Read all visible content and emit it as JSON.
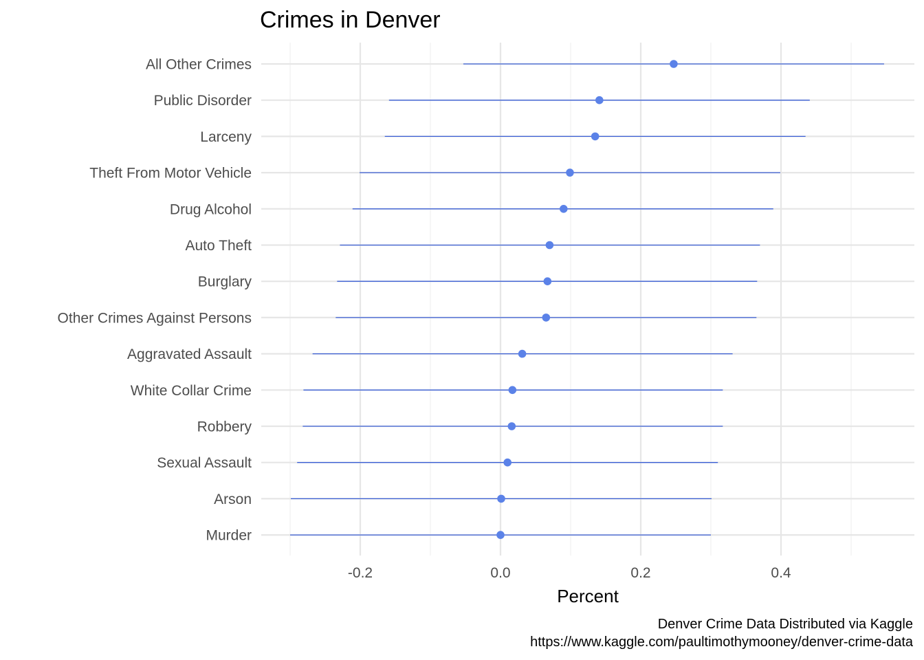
{
  "chart_data": {
    "type": "scatter",
    "title": "Crimes in Denver",
    "xlabel": "Percent",
    "ylabel": "",
    "caption": [
      "Denver Crime Data Distributed via Kaggle",
      "https://www.kaggle.com/paultimothymooney/denver-crime-data"
    ],
    "xlim": [
      -0.3,
      0.55
    ],
    "x_ticks": [
      -0.2,
      0.0,
      0.2,
      0.4
    ],
    "x_tick_labels": [
      "-0.2",
      "0.0",
      "0.2",
      "0.4"
    ],
    "grid": true,
    "point_color": "#5b82e8",
    "line_color": "#3a5fd6",
    "categories": [
      "All Other Crimes",
      "Public Disorder",
      "Larceny",
      "Theft From Motor Vehicle",
      "Drug Alcohol",
      "Auto Theft",
      "Burglary",
      "Other Crimes Against Persons",
      "Aggravated Assault",
      "White Collar Crime",
      "Robbery",
      "Sexual Assault",
      "Arson",
      "Murder"
    ],
    "series": [
      {
        "values": [
          0.247,
          0.141,
          0.135,
          0.099,
          0.09,
          0.07,
          0.067,
          0.065,
          0.031,
          0.017,
          0.016,
          0.01,
          0.001,
          0.0
        ],
        "lower": [
          -0.053,
          -0.159,
          -0.165,
          -0.201,
          -0.211,
          -0.229,
          -0.233,
          -0.235,
          -0.268,
          -0.281,
          -0.282,
          -0.29,
          -0.299,
          -0.3
        ],
        "upper": [
          0.547,
          0.441,
          0.435,
          0.399,
          0.389,
          0.37,
          0.366,
          0.365,
          0.331,
          0.317,
          0.317,
          0.31,
          0.301,
          0.3
        ]
      }
    ]
  }
}
